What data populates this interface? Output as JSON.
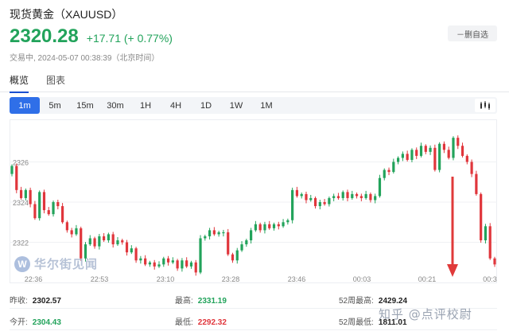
{
  "header": {
    "title": "现货黄金（XAUUSD）",
    "price": "2320.28",
    "change": "+17.71 (+ 0.77%)",
    "status": "交易中,  2024-05-07 00:38:39（北京时间）",
    "remove_watchlist": "－删自选"
  },
  "tabs": [
    "概览",
    "图表"
  ],
  "periods": [
    "1m",
    "5m",
    "15m",
    "30m",
    "1H",
    "4H",
    "1D",
    "1W",
    "1M"
  ],
  "active_period": "1m",
  "watermark": "华尔街见闻",
  "footer_mark": "知乎 @点评校尉",
  "stats": {
    "prev_close": {
      "label": "昨收:",
      "value": "2302.57"
    },
    "open": {
      "label": "今开:",
      "value": "2304.43"
    },
    "high": {
      "label": "最高:",
      "value": "2331.19"
    },
    "low": {
      "label": "最低:",
      "value": "2292.32"
    },
    "week52_high": {
      "label": "52周最高:",
      "value": "2429.24"
    },
    "week52_low": {
      "label": "52周最低:",
      "value": "1811.01"
    }
  },
  "colors": {
    "up": "#22a35b",
    "down": "#e0363c",
    "accent": "#2f6fe8",
    "annotation_arrow": "#e03a3a"
  },
  "chart_data": {
    "type": "candlestick",
    "y_ticks": [
      2322,
      2324,
      2326
    ],
    "x_ticks": [
      "22:36",
      "22:53",
      "23:10",
      "23:28",
      "23:46",
      "00:03",
      "00:21",
      "00:3"
    ],
    "ylim": [
      2320.2,
      2327.8
    ],
    "close": [
      2325.8,
      2324.6,
      2324.2,
      2324.6,
      2323.9,
      2323.2,
      2324.5,
      2323.6,
      2323.4,
      2324.0,
      2323.8,
      2323.0,
      2322.6,
      2322.4,
      2322.7,
      2321.2,
      2321.9,
      2322.2,
      2321.8,
      2322.3,
      2322.1,
      2322.4,
      2321.9,
      2322.1,
      2322.0,
      2321.5,
      2321.7,
      2321.1,
      2321.2,
      2320.9,
      2321.0,
      2320.8,
      2320.9,
      2321.2,
      2321.0,
      2321.1,
      2320.7,
      2321.1,
      2320.8,
      2321.0,
      2320.5,
      2322.2,
      2322.3,
      2322.6,
      2322.4,
      2322.5,
      2322.5,
      2321.4,
      2321.1,
      2321.6,
      2321.9,
      2322.1,
      2322.6,
      2322.9,
      2322.6,
      2322.9,
      2322.7,
      2322.9,
      2322.8,
      2323.0,
      2323.1,
      2324.6,
      2324.3,
      2324.4,
      2324.1,
      2324.2,
      2323.8,
      2324.0,
      2323.9,
      2324.2,
      2324.3,
      2324.2,
      2324.5,
      2324.2,
      2324.4,
      2324.3,
      2324.2,
      2324.4,
      2324.1,
      2324.3,
      2325.2,
      2325.6,
      2325.5,
      2326.0,
      2326.2,
      2326.4,
      2326.1,
      2326.6,
      2326.3,
      2326.8,
      2326.5,
      2326.7,
      2325.6,
      2326.9,
      2326.6,
      2326.2,
      2327.2,
      2326.8,
      2326.3,
      2326.0,
      2325.4,
      2324.4,
      2322.1,
      2322.8,
      2321.2,
      2320.9
    ]
  }
}
